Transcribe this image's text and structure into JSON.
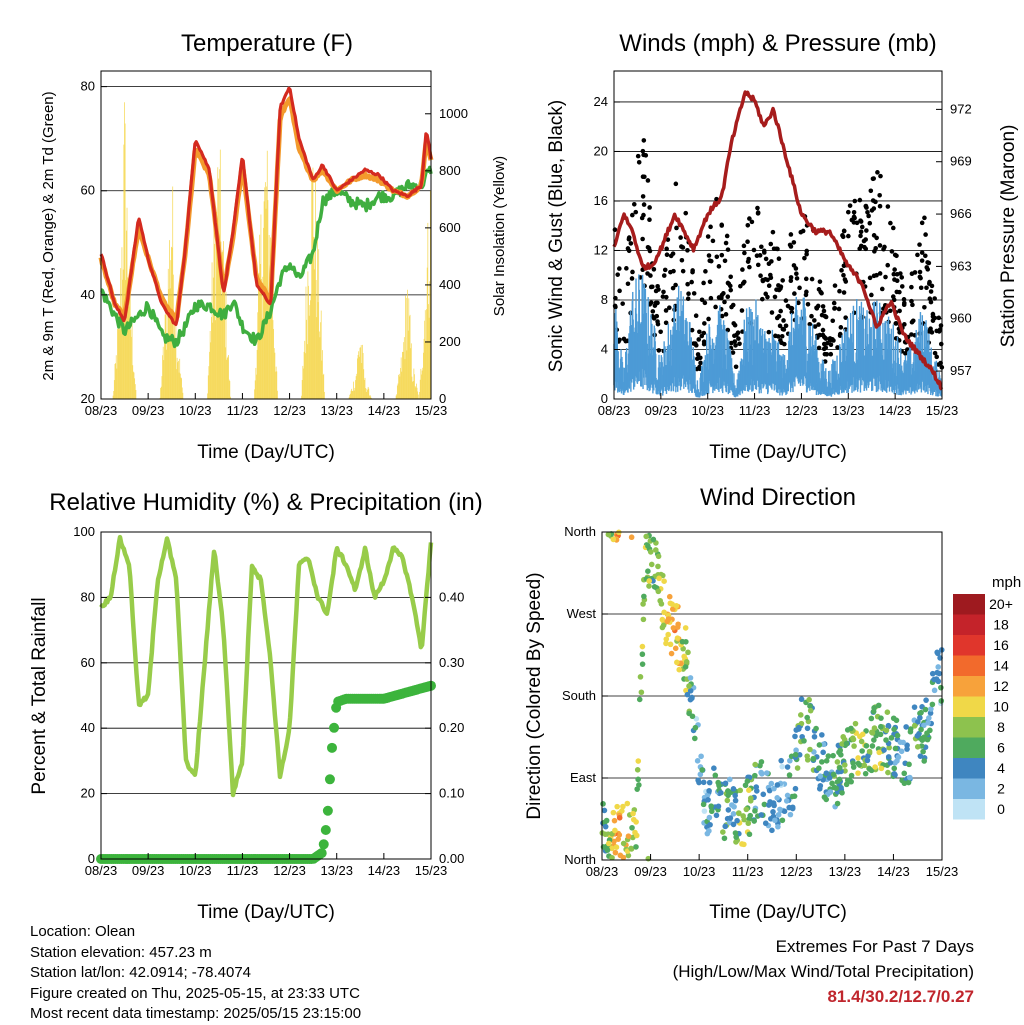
{
  "colors": {
    "temp_2m": "#d42a1f",
    "temp_9m": "#f39a2c",
    "dewpoint": "#3fae3f",
    "solar": "#f5d547",
    "wind": "#4d9bd6",
    "gust": "#000000",
    "pressure": "#a61c1c",
    "rh": "#98cc4a",
    "rain": "#3cb43c",
    "extremes": "#c0262d"
  },
  "time_ticks": [
    "08/23",
    "09/23",
    "10/23",
    "11/23",
    "12/23",
    "13/23",
    "14/23",
    "15/23"
  ],
  "info": {
    "location": "Location: Olean",
    "elevation": "Station elevation: 457.23 m",
    "latlon": "Station lat/lon: 42.0914; -78.4074",
    "created": "Figure created on Thu, 2025-05-15, at 23:33 UTC",
    "latest": "Most recent data timestamp: 2025/05/15 23:15:00"
  },
  "extremes": {
    "title": "Extremes For Past 7 Days",
    "subtitle": "(High/Low/Max Wind/Total Precipitation)",
    "values": "81.4/30.2/12.7/0.27"
  },
  "chart_data": [
    {
      "type": "line",
      "title": "Temperature (F)",
      "xlabel": "Time (Day/UTC)",
      "ylabel": "2m & 9m T (Red, Orange) & 2m Td (Green)",
      "y2label": "Solar Insolation (Yellow)",
      "xlim": [
        8,
        15
      ],
      "ylim": [
        20,
        83
      ],
      "y2lim": [
        0,
        1150
      ],
      "yticks": [
        "20",
        "40",
        "60",
        "80"
      ],
      "y2ticks": [
        "0",
        "200",
        "400",
        "600",
        "800",
        "1000"
      ],
      "series": [
        {
          "id": "t2m",
          "x": [
            8.0,
            8.3,
            8.5,
            8.8,
            9.0,
            9.3,
            9.6,
            9.8,
            10.0,
            10.3,
            10.6,
            10.8,
            11.0,
            11.3,
            11.6,
            11.8,
            12.0,
            12.2,
            12.5,
            12.7,
            13.0,
            13.3,
            13.6,
            13.9,
            14.2,
            14.5,
            14.8,
            14.9,
            15.0
          ],
          "y": [
            48,
            38,
            35,
            55,
            47,
            38,
            34,
            50,
            70,
            64,
            40,
            52,
            67,
            42,
            38,
            76,
            80,
            70,
            62,
            65,
            60,
            62,
            64,
            63,
            60,
            59,
            61,
            72,
            66
          ]
        },
        {
          "id": "t9m",
          "x": [
            8.0,
            8.3,
            8.5,
            8.8,
            9.0,
            9.3,
            9.6,
            9.8,
            10.0,
            10.3,
            10.6,
            10.8,
            11.0,
            11.3,
            11.6,
            11.8,
            12.0,
            12.2,
            12.5,
            12.7,
            13.0,
            13.3,
            13.6,
            13.9,
            14.2,
            14.5,
            14.8,
            14.9,
            15.0
          ],
          "y": [
            47,
            38,
            36,
            53,
            47,
            39,
            35,
            49,
            68,
            63,
            41,
            51,
            65,
            43,
            39,
            74,
            78,
            68,
            62,
            64,
            60,
            62,
            63,
            62,
            60,
            59,
            61,
            70,
            66
          ]
        },
        {
          "id": "td2m",
          "x": [
            8.0,
            8.3,
            8.5,
            8.8,
            9.0,
            9.3,
            9.6,
            9.8,
            10.0,
            10.3,
            10.6,
            10.8,
            11.0,
            11.3,
            11.6,
            11.8,
            12.0,
            12.2,
            12.5,
            12.7,
            13.0,
            13.3,
            13.6,
            13.9,
            14.2,
            14.5,
            14.8,
            14.9,
            15.0
          ],
          "y": [
            41,
            36,
            33,
            36,
            38,
            32,
            31,
            34,
            38,
            38,
            36,
            39,
            34,
            31,
            37,
            43,
            46,
            43,
            48,
            58,
            60,
            58,
            57,
            59,
            59,
            61,
            61,
            63,
            64
          ]
        },
        {
          "id": "solar",
          "x": [
            8.0,
            8.25,
            8.4,
            8.5,
            8.6,
            8.75,
            9.0,
            9.25,
            9.4,
            9.5,
            9.6,
            9.75,
            10.0,
            10.25,
            10.4,
            10.5,
            10.6,
            10.75,
            11.0,
            11.25,
            11.4,
            11.5,
            11.6,
            11.75,
            12.0,
            12.25,
            12.4,
            12.5,
            12.6,
            12.75,
            13.0,
            13.25,
            13.4,
            13.5,
            13.6,
            13.75,
            14.0,
            14.25,
            14.4,
            14.5,
            14.6,
            14.75,
            15.0
          ],
          "y": [
            0,
            0,
            400,
            1150,
            500,
            0,
            0,
            0,
            450,
            900,
            300,
            0,
            0,
            0,
            700,
            1000,
            600,
            0,
            0,
            0,
            750,
            1000,
            700,
            0,
            0,
            0,
            650,
            1020,
            600,
            0,
            0,
            0,
            100,
            300,
            80,
            0,
            0,
            0,
            200,
            500,
            150,
            0,
            900
          ]
        }
      ]
    },
    {
      "type": "scatter",
      "title": "Winds (mph) & Pressure (mb)",
      "xlabel": "Time (Day/UTC)",
      "ylabel": "Sonic Wind & Gust (Blue, Black)",
      "y2label": "Station Pressure (Maroon)",
      "xlim": [
        8,
        15
      ],
      "ylim": [
        0,
        26.5
      ],
      "y2lim": [
        955.4,
        974.2
      ],
      "yticks": [
        "0",
        "4",
        "8",
        "12",
        "16",
        "20",
        "24"
      ],
      "y2ticks": [
        "957",
        "960",
        "963",
        "966",
        "969",
        "972"
      ],
      "series": [
        {
          "id": "pressure",
          "x": [
            8.0,
            8.2,
            8.4,
            8.6,
            8.8,
            9.0,
            9.3,
            9.5,
            9.7,
            10.0,
            10.3,
            10.5,
            10.8,
            11.0,
            11.2,
            11.4,
            11.6,
            11.8,
            12.0,
            12.3,
            12.6,
            12.8,
            13.0,
            13.3,
            13.6,
            13.9,
            14.2,
            14.5,
            14.8,
            15.0
          ],
          "y": [
            964,
            966,
            965,
            963,
            963,
            964,
            966,
            965,
            964,
            966,
            967,
            970,
            973,
            972.5,
            971,
            972,
            970,
            968,
            966,
            965,
            965,
            964,
            963,
            962,
            959.5,
            961,
            959,
            958,
            957,
            956
          ]
        },
        {
          "id": "wind",
          "x": [
            8.0,
            8.2,
            8.4,
            8.6,
            8.8,
            9.0,
            9.2,
            9.4,
            9.6,
            9.8,
            10.0,
            10.2,
            10.4,
            10.6,
            10.8,
            11.0,
            11.2,
            11.4,
            11.6,
            11.8,
            12.0,
            12.2,
            12.4,
            12.6,
            12.8,
            13.0,
            13.2,
            13.4,
            13.6,
            13.8,
            14.0,
            14.2,
            14.4,
            14.6,
            14.8,
            15.0
          ],
          "y": [
            8,
            2,
            8,
            9,
            6,
            3,
            6,
            8,
            6,
            1,
            5,
            7,
            5,
            1,
            6,
            7,
            5,
            5,
            3,
            6,
            8,
            6,
            3,
            2,
            4,
            6,
            7,
            6,
            7,
            6,
            5,
            3,
            4,
            7,
            3,
            2
          ]
        },
        {
          "id": "gust",
          "x": [
            8.0,
            8.2,
            8.4,
            8.6,
            8.8,
            9.0,
            9.2,
            9.4,
            9.6,
            9.8,
            10.0,
            10.2,
            10.4,
            10.6,
            10.8,
            11.0,
            11.2,
            11.4,
            11.6,
            11.8,
            12.0,
            12.2,
            12.4,
            12.6,
            12.8,
            13.0,
            13.2,
            13.4,
            13.6,
            13.8,
            14.0,
            14.2,
            14.4,
            14.6,
            14.8,
            15.0
          ],
          "y": [
            13,
            6,
            15,
            20,
            12,
            6,
            13,
            16,
            13,
            4,
            11,
            14,
            12,
            5,
            12,
            14,
            11,
            12,
            8,
            12,
            14,
            13,
            8,
            5,
            10,
            13,
            14,
            13,
            16,
            14,
            11,
            7,
            9,
            13,
            8,
            5
          ]
        }
      ]
    },
    {
      "type": "line",
      "title": "Relative Humidity (%) & Precipitation (in)",
      "xlabel": "Time (Day/UTC)",
      "ylabel": "Percent & Total Rainfall",
      "xlim": [
        8,
        15
      ],
      "ylim": [
        0,
        100
      ],
      "y2lim": [
        0,
        0.5
      ],
      "yticks": [
        "0",
        "20",
        "40",
        "60",
        "80",
        "100"
      ],
      "y2ticks": [
        "0.00",
        "0.10",
        "0.20",
        "0.30",
        "0.40"
      ],
      "series": [
        {
          "id": "rh",
          "x": [
            8.0,
            8.2,
            8.4,
            8.6,
            8.8,
            9.0,
            9.2,
            9.4,
            9.6,
            9.8,
            10.0,
            10.2,
            10.4,
            10.6,
            10.8,
            11.0,
            11.2,
            11.4,
            11.6,
            11.8,
            12.0,
            12.2,
            12.4,
            12.6,
            12.8,
            13.0,
            13.2,
            13.4,
            13.6,
            13.8,
            14.0,
            14.2,
            14.4,
            14.6,
            14.8,
            15.0
          ],
          "y": [
            77,
            80,
            98,
            90,
            47,
            50,
            85,
            98,
            85,
            30,
            25,
            60,
            95,
            70,
            20,
            30,
            90,
            85,
            60,
            25,
            40,
            90,
            92,
            80,
            75,
            95,
            90,
            82,
            95,
            80,
            85,
            95,
            92,
            80,
            64,
            97
          ]
        },
        {
          "id": "rain",
          "x": [
            8.0,
            12.5,
            12.7,
            12.8,
            12.9,
            13.0,
            13.2,
            14.0,
            15.0
          ],
          "y": [
            0,
            0,
            0.01,
            0.06,
            0.17,
            0.24,
            0.245,
            0.245,
            0.265
          ]
        }
      ]
    },
    {
      "type": "scatter",
      "title": "Wind Direction",
      "xlabel": "Time (Day/UTC)",
      "ylabel": "Direction (Colored By Speed)",
      "xlim": [
        8,
        15
      ],
      "ylim": [
        0,
        360
      ],
      "yticks": [
        "North",
        "East",
        "South",
        "West",
        "North"
      ],
      "legend": {
        "title": "mph",
        "labels": [
          "20+",
          "18",
          "16",
          "14",
          "12",
          "10",
          "8",
          "6",
          "4",
          "2",
          "0"
        ],
        "colors": [
          "#9e1a1f",
          "#c4232a",
          "#e0362c",
          "#f26a2c",
          "#f7a23b",
          "#f0d848",
          "#8dc24e",
          "#4faa5e",
          "#3f86c0",
          "#7ab7e2",
          "#bfe3f5"
        ]
      },
      "series": [
        {
          "id": "dir",
          "x": [
            8.1,
            8.3,
            8.5,
            8.7,
            8.9,
            9.1,
            9.3,
            9.5,
            9.7,
            9.9,
            10.1,
            10.3,
            10.5,
            10.7,
            10.9,
            11.1,
            11.3,
            11.5,
            11.7,
            11.9,
            12.1,
            12.3,
            12.5,
            12.7,
            12.9,
            13.1,
            13.3,
            13.5,
            13.7,
            13.9,
            14.1,
            14.3,
            14.5,
            14.7,
            14.9
          ],
          "y": [
            30,
            25,
            30,
            20,
            340,
            320,
            270,
            250,
            230,
            150,
            60,
            70,
            55,
            60,
            40,
            70,
            80,
            60,
            75,
            80,
            150,
            140,
            110,
            80,
            100,
            120,
            125,
            130,
            135,
            130,
            120,
            115,
            150,
            140,
            200
          ],
          "speed": [
            6,
            12,
            10,
            8,
            8,
            6,
            10,
            12,
            8,
            3,
            3,
            4,
            6,
            4,
            8,
            6,
            4,
            3,
            3,
            4,
            6,
            6,
            4,
            4,
            6,
            6,
            8,
            6,
            8,
            6,
            4,
            4,
            6,
            4,
            3
          ]
        }
      ]
    }
  ]
}
